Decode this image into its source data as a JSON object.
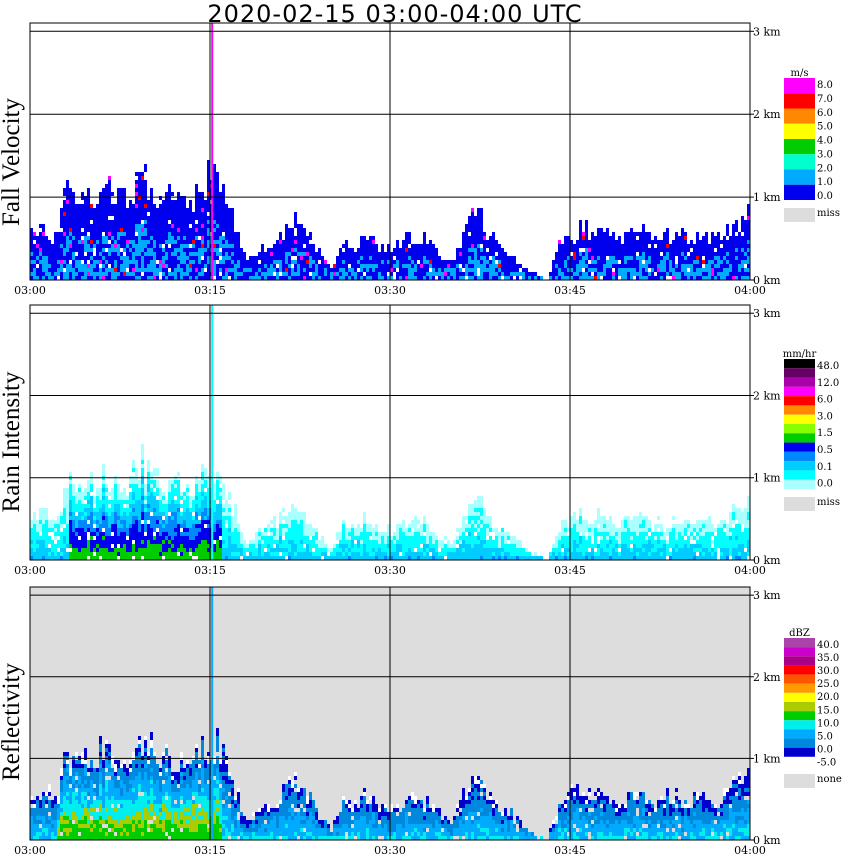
{
  "title": "2020-02-15   03:00-04:00 UTC",
  "panels": [
    {
      "id": "fall-velocity",
      "ylabel": "Fall Velocity",
      "unit": "m/s",
      "legend_colors": [
        "#ff00ff",
        "#ff0000",
        "#ff8800",
        "#ffff00",
        "#00cc00",
        "#00ffcc",
        "#00aaff",
        "#0000ee"
      ],
      "legend_labels": [
        "8.0",
        "7.0",
        "6.0",
        "5.0",
        "4.0",
        "3.0",
        "2.0",
        "1.0",
        "0.0"
      ],
      "miss_label": "miss",
      "background": "#ffffff"
    },
    {
      "id": "rain-intensity",
      "ylabel": "Rain Intensity",
      "unit": "mm/hr",
      "legend_colors": [
        "#000000",
        "#660066",
        "#aa00aa",
        "#ff00ff",
        "#ff0000",
        "#ff8800",
        "#ffff00",
        "#88ff00",
        "#00cc00",
        "#0000ee",
        "#0088ff",
        "#00ccff",
        "#00ffff",
        "#aaffff"
      ],
      "legend_labels": [
        "48.0",
        "12.0",
        "6.0",
        "3.0",
        "1.5",
        "0.5",
        "0.1",
        "0.0"
      ],
      "miss_label": "miss",
      "background": "#ffffff"
    },
    {
      "id": "reflectivity",
      "ylabel": "Reflectivity",
      "unit": "dBZ",
      "legend_colors": [
        "#aa44aa",
        "#cc00cc",
        "#aa0088",
        "#ff0000",
        "#ff5500",
        "#ff9900",
        "#ffff00",
        "#aacc00",
        "#00cc00",
        "#00eeee",
        "#00aaff",
        "#0088dd",
        "#0000cc",
        "#ffffff"
      ],
      "legend_labels": [
        "40.0",
        "35.0",
        "30.0",
        "25.0",
        "20.0",
        "15.0",
        "10.0",
        "5.0",
        "0.0",
        "-5.0"
      ],
      "miss_label": "none",
      "background": "#dddddd"
    }
  ],
  "chart_data": {
    "type": "heatmap",
    "x_ticks": [
      "03:00",
      "03:15",
      "03:30",
      "03:45",
      "04:00"
    ],
    "y_ticks": [
      "0 km",
      "1 km",
      "2 km",
      "3 km"
    ],
    "xlim": [
      "03:00",
      "04:00"
    ],
    "ylim_km": [
      0,
      3.1
    ],
    "grid": true,
    "echo_top_profile": {
      "x_minutes": [
        0,
        1,
        2,
        3,
        4,
        5,
        6,
        7,
        8,
        9,
        10,
        11,
        12,
        13,
        14,
        15,
        16,
        17,
        18,
        19,
        20,
        21,
        22,
        23,
        24,
        25,
        26,
        27,
        28,
        29,
        30,
        31,
        32,
        33,
        34,
        35,
        36,
        37,
        38,
        39,
        40,
        41,
        42,
        43,
        44,
        45,
        46,
        47,
        48,
        49,
        50,
        51,
        52,
        53,
        54,
        55,
        56,
        57,
        58,
        59,
        60
      ],
      "top_km": [
        0.55,
        0.6,
        0.5,
        1.05,
        0.9,
        0.95,
        1.1,
        1.0,
        0.9,
        1.3,
        1.1,
        0.95,
        1.0,
        0.95,
        1.0,
        1.25,
        1.0,
        0.6,
        0.2,
        0.35,
        0.45,
        0.55,
        0.7,
        0.55,
        0.3,
        0.1,
        0.45,
        0.4,
        0.55,
        0.4,
        0.35,
        0.45,
        0.5,
        0.45,
        0.3,
        0.2,
        0.5,
        0.9,
        0.55,
        0.4,
        0.3,
        0.15,
        0.05,
        0.0,
        0.4,
        0.55,
        0.6,
        0.55,
        0.5,
        0.45,
        0.55,
        0.6,
        0.45,
        0.5,
        0.55,
        0.45,
        0.5,
        0.45,
        0.55,
        0.7,
        0.85
      ]
    }
  }
}
